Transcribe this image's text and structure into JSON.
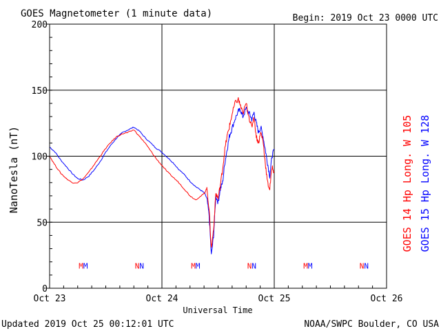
{
  "chart_data": {
    "type": "line",
    "title": "GOES Magnetometer (1 minute data)",
    "begin_label": "Begin:  2019 Oct 23 0000 UTC",
    "xlabel": "Universal Time",
    "ylabel": "NanoTesla (nT)",
    "x_ticks": [
      "Oct 23",
      "Oct 24",
      "Oct 25",
      "Oct 26"
    ],
    "xlim_days": [
      0,
      3
    ],
    "y_ticks": [
      "0",
      "50",
      "100",
      "150",
      "200"
    ],
    "ylim": [
      0,
      200
    ],
    "grid": true,
    "footer_left": "Updated 2019 Oct 25 00:12:01 UTC",
    "footer_right": "NOAA/SWPC Boulder, CO USA",
    "legend_position": "right-vertical",
    "series": [
      {
        "name": "GOES 15 Hp  Long. W 128",
        "color": "#0000ff",
        "x": [
          0,
          0.05,
          0.1,
          0.15,
          0.2,
          0.25,
          0.3,
          0.35,
          0.4,
          0.45,
          0.5,
          0.55,
          0.6,
          0.65,
          0.7,
          0.75,
          0.8,
          0.85,
          0.9,
          0.95,
          1.0,
          1.05,
          1.1,
          1.15,
          1.2,
          1.25,
          1.3,
          1.35,
          1.38,
          1.4,
          1.42,
          1.44,
          1.46,
          1.48,
          1.5,
          1.52,
          1.54,
          1.56,
          1.58,
          1.6,
          1.62,
          1.65,
          1.68,
          1.7,
          1.72,
          1.75,
          1.78,
          1.8,
          1.82,
          1.84,
          1.86,
          1.88,
          1.9,
          1.92,
          1.94,
          1.96,
          1.98,
          2.0
        ],
        "y": [
          107,
          103,
          97,
          92,
          87,
          83,
          82,
          85,
          90,
          96,
          103,
          109,
          114,
          118,
          120,
          122,
          119,
          114,
          110,
          106,
          103,
          99,
          95,
          90,
          86,
          81,
          77,
          74,
          72,
          68,
          55,
          25,
          40,
          70,
          65,
          75,
          80,
          95,
          105,
          115,
          120,
          128,
          134,
          135,
          130,
          136,
          132,
          128,
          133,
          125,
          118,
          122,
          115,
          105,
          95,
          85,
          100,
          105
        ]
      },
      {
        "name": "GOES 14 Hp  Long. W 105",
        "color": "#ff0000",
        "x": [
          0,
          0.05,
          0.1,
          0.15,
          0.2,
          0.25,
          0.3,
          0.35,
          0.4,
          0.45,
          0.5,
          0.55,
          0.6,
          0.65,
          0.7,
          0.75,
          0.8,
          0.85,
          0.9,
          0.95,
          1.0,
          1.05,
          1.1,
          1.15,
          1.2,
          1.25,
          1.3,
          1.35,
          1.38,
          1.4,
          1.42,
          1.44,
          1.46,
          1.48,
          1.5,
          1.52,
          1.54,
          1.56,
          1.58,
          1.6,
          1.62,
          1.65,
          1.68,
          1.7,
          1.72,
          1.75,
          1.78,
          1.8,
          1.82,
          1.84,
          1.86,
          1.88,
          1.9,
          1.92,
          1.94,
          1.96,
          1.98,
          2.0
        ],
        "y": [
          100,
          93,
          87,
          83,
          80,
          80,
          83,
          88,
          94,
          100,
          106,
          111,
          115,
          117,
          118,
          120,
          115,
          110,
          104,
          98,
          93,
          88,
          84,
          80,
          75,
          70,
          67,
          70,
          72,
          76,
          60,
          30,
          45,
          72,
          68,
          78,
          90,
          105,
          115,
          122,
          130,
          140,
          143,
          138,
          132,
          140,
          128,
          122,
          130,
          115,
          110,
          118,
          112,
          95,
          80,
          75,
          92,
          88
        ]
      }
    ],
    "markers": [
      {
        "label": "MM",
        "x": 0.3
      },
      {
        "label": "NN",
        "x": 0.8
      },
      {
        "label": "MM",
        "x": 1.3
      },
      {
        "label": "NN",
        "x": 1.8
      },
      {
        "label": "MM",
        "x": 2.3
      },
      {
        "label": "NN",
        "x": 2.8
      }
    ],
    "marker_y": 17
  }
}
